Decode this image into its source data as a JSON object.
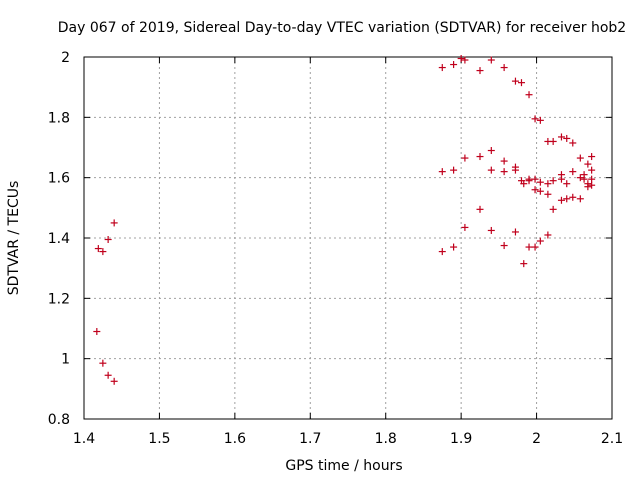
{
  "chart_data": {
    "type": "scatter",
    "title": "Day 067 of 2019, Sidereal Day-to-day VTEC variation (SDTVAR) for receiver hob2",
    "xlabel": "GPS time / hours",
    "ylabel": "SDTVAR / TECUs",
    "xlim": [
      1.4,
      2.1
    ],
    "ylim": [
      0.8,
      2.0
    ],
    "xticks": [
      "1.4",
      "1.5",
      "1.6",
      "1.7",
      "1.8",
      "1.9",
      "2",
      "2.1"
    ],
    "yticks": [
      "0.8",
      "1",
      "1.2",
      "1.4",
      "1.6",
      "1.8",
      "2"
    ],
    "grid": true,
    "marker": "+",
    "color": "#c0001c",
    "points": [
      [
        1.417,
        1.09
      ],
      [
        1.419,
        1.365
      ],
      [
        1.425,
        1.355
      ],
      [
        1.425,
        0.985
      ],
      [
        1.432,
        1.395
      ],
      [
        1.432,
        0.945
      ],
      [
        1.44,
        1.45
      ],
      [
        1.44,
        0.925
      ],
      [
        1.875,
        1.965
      ],
      [
        1.875,
        1.62
      ],
      [
        1.875,
        1.355
      ],
      [
        1.89,
        1.975
      ],
      [
        1.89,
        1.625
      ],
      [
        1.89,
        1.37
      ],
      [
        1.9,
        1.995
      ],
      [
        1.905,
        1.99
      ],
      [
        1.905,
        1.665
      ],
      [
        1.905,
        1.435
      ],
      [
        1.925,
        1.955
      ],
      [
        1.925,
        1.67
      ],
      [
        1.925,
        1.495
      ],
      [
        1.94,
        1.99
      ],
      [
        1.94,
        1.69
      ],
      [
        1.94,
        1.625
      ],
      [
        1.94,
        1.425
      ],
      [
        1.957,
        1.965
      ],
      [
        1.957,
        1.655
      ],
      [
        1.957,
        1.62
      ],
      [
        1.957,
        1.375
      ],
      [
        1.972,
        1.92
      ],
      [
        1.972,
        1.635
      ],
      [
        1.972,
        1.625
      ],
      [
        1.972,
        1.42
      ],
      [
        1.98,
        1.915
      ],
      [
        1.98,
        1.59
      ],
      [
        1.983,
        1.58
      ],
      [
        1.983,
        1.315
      ],
      [
        1.99,
        1.875
      ],
      [
        1.99,
        1.595
      ],
      [
        1.99,
        1.59
      ],
      [
        1.99,
        1.37
      ],
      [
        1.998,
        1.795
      ],
      [
        1.998,
        1.595
      ],
      [
        1.998,
        1.56
      ],
      [
        1.998,
        1.37
      ],
      [
        2.005,
        1.79
      ],
      [
        2.005,
        1.585
      ],
      [
        2.005,
        1.555
      ],
      [
        2.005,
        1.39
      ],
      [
        2.015,
        1.72
      ],
      [
        2.015,
        1.545
      ],
      [
        2.015,
        1.41
      ],
      [
        2.015,
        1.58
      ],
      [
        2.022,
        1.72
      ],
      [
        2.022,
        1.59
      ],
      [
        2.022,
        1.495
      ],
      [
        2.033,
        1.735
      ],
      [
        2.033,
        1.61
      ],
      [
        2.033,
        1.595
      ],
      [
        2.033,
        1.525
      ],
      [
        2.04,
        1.73
      ],
      [
        2.04,
        1.58
      ],
      [
        2.04,
        1.53
      ],
      [
        2.048,
        1.715
      ],
      [
        2.048,
        1.62
      ],
      [
        2.048,
        1.535
      ],
      [
        2.058,
        1.665
      ],
      [
        2.058,
        1.6
      ],
      [
        2.058,
        1.53
      ],
      [
        2.063,
        1.595
      ],
      [
        2.063,
        1.61
      ],
      [
        2.068,
        1.645
      ],
      [
        2.068,
        1.58
      ],
      [
        2.068,
        1.57
      ],
      [
        2.073,
        1.67
      ],
      [
        2.073,
        1.625
      ],
      [
        2.073,
        1.595
      ],
      [
        2.073,
        1.575
      ]
    ]
  }
}
